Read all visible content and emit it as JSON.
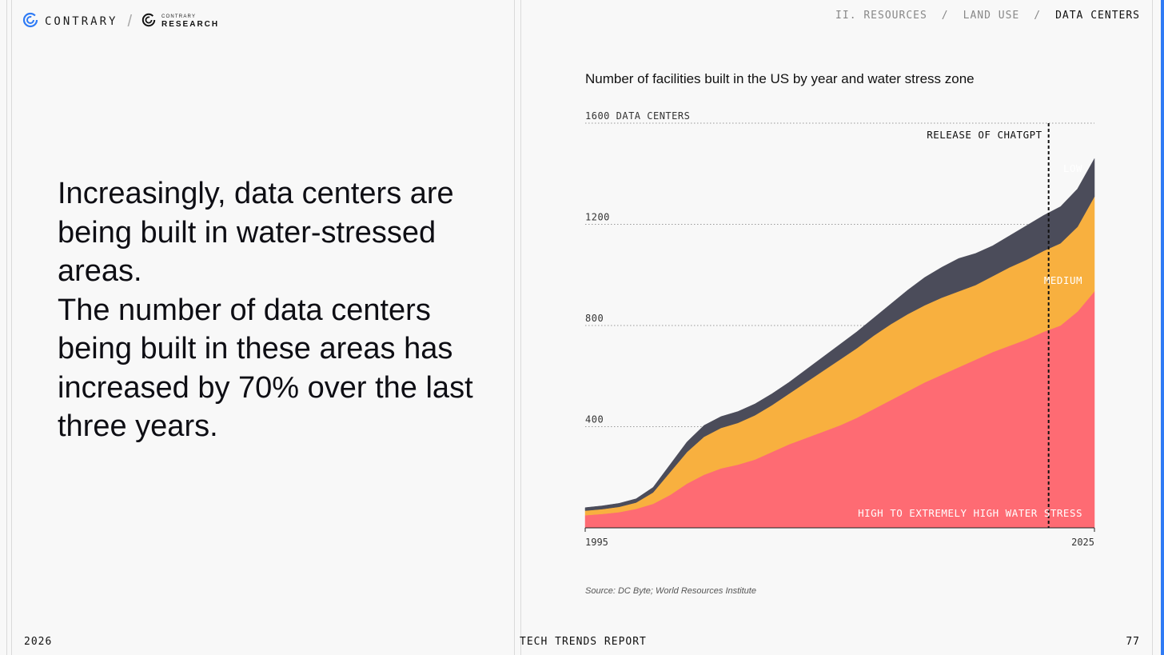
{
  "header": {
    "brand": "CONTRARY",
    "sub_brand_top": "CONTRARY",
    "sub_brand_bottom": "RESEARCH",
    "breadcrumbs": [
      "II. RESOURCES",
      "LAND USE",
      "DATA CENTERS"
    ],
    "separator": "/"
  },
  "headline": {
    "line1": "Increasingly, data centers are being built in water-stressed areas.",
    "line2": "The number of data centers being built in these areas has increased by 70% over the last three years."
  },
  "footer": {
    "year": "2026",
    "report": "TECH TRENDS REPORT",
    "page": "77"
  },
  "chart_data": {
    "type": "area",
    "stacked": true,
    "title": "Number of facilities built in the US by year and water stress zone",
    "y_unit_label": "DATA CENTERS",
    "ylim": [
      0,
      1600
    ],
    "yticks": [
      400,
      800,
      1200,
      1600
    ],
    "xlim": [
      1995,
      2025
    ],
    "xtick_labels": [
      "1995",
      "2025"
    ],
    "x": [
      1995,
      1996,
      1997,
      1998,
      1999,
      2000,
      2001,
      2002,
      2003,
      2004,
      2005,
      2006,
      2007,
      2008,
      2009,
      2010,
      2011,
      2012,
      2013,
      2014,
      2015,
      2016,
      2017,
      2018,
      2019,
      2020,
      2021,
      2022,
      2023,
      2024,
      2025
    ],
    "series": [
      {
        "name": "HIGH TO EXTREMELY HIGH WATER STRESS",
        "color": "#fe6b73",
        "values": [
          50,
          55,
          62,
          75,
          95,
          130,
          175,
          210,
          235,
          250,
          270,
          300,
          330,
          355,
          380,
          405,
          435,
          470,
          505,
          540,
          575,
          605,
          635,
          665,
          695,
          720,
          745,
          775,
          800,
          855,
          935
        ]
      },
      {
        "name": "MEDIUM",
        "color": "#f8b03f",
        "values": [
          18,
          19,
          21,
          25,
          45,
          90,
          125,
          150,
          160,
          165,
          175,
          185,
          200,
          220,
          240,
          260,
          275,
          290,
          300,
          305,
          305,
          305,
          300,
          295,
          300,
          310,
          315,
          320,
          325,
          335,
          375
        ]
      },
      {
        "name": "LOW",
        "color": "#4b4c5a",
        "values": [
          12,
          13,
          14,
          15,
          20,
          30,
          40,
          45,
          45,
          45,
          45,
          45,
          45,
          50,
          55,
          60,
          65,
          70,
          80,
          95,
          110,
          120,
          130,
          125,
          120,
          125,
          135,
          140,
          145,
          150,
          150
        ]
      }
    ],
    "series_labels": {
      "high": "HIGH TO EXTREMELY HIGH WATER STRESS",
      "medium": "MEDIUM",
      "low": "LOW"
    },
    "annotation": {
      "label": "RELEASE OF CHATGPT",
      "x": 2022.3
    },
    "source": "Source: DC Byte; World Resources Institute"
  }
}
